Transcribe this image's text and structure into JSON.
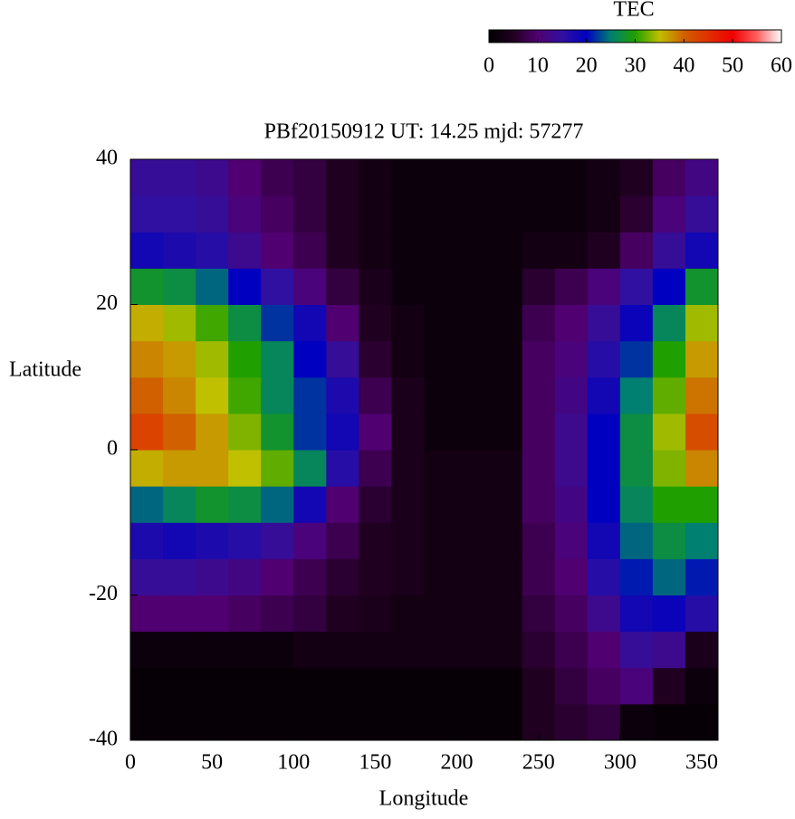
{
  "chart_data": {
    "type": "heatmap",
    "title": "PBf20150912  UT: 14.25  mjd: 57277",
    "xlabel": "Longitude",
    "ylabel": "Latitude",
    "colorbar_label": "TEC",
    "xbins": [
      0,
      20,
      40,
      60,
      80,
      100,
      120,
      140,
      160,
      180,
      200,
      220,
      240,
      260,
      280,
      300,
      320,
      340,
      360
    ],
    "ybins": [
      -40,
      -35,
      -30,
      -25,
      -20,
      -15,
      -10,
      -5,
      0,
      5,
      10,
      15,
      20,
      25,
      30,
      35,
      40
    ],
    "z": [
      [
        1,
        1,
        1,
        1,
        1,
        1,
        1,
        1,
        1,
        1,
        1,
        1,
        5,
        6,
        7,
        2,
        1,
        1
      ],
      [
        1,
        1,
        1,
        1,
        1,
        1,
        1,
        1,
        1,
        1,
        1,
        1,
        5,
        7,
        9,
        11,
        5,
        2
      ],
      [
        2,
        2,
        2,
        2,
        2,
        3,
        3,
        3,
        3,
        3,
        3,
        3,
        6,
        8,
        10,
        14,
        13,
        4
      ],
      [
        10,
        10,
        10,
        9,
        8,
        7,
        5,
        4,
        3,
        3,
        3,
        3,
        7,
        9,
        13,
        18,
        19,
        16
      ],
      [
        14,
        14,
        13,
        12,
        10,
        8,
        6,
        5,
        4,
        3,
        3,
        3,
        8,
        10,
        16,
        21,
        24,
        21
      ],
      [
        17,
        18,
        17,
        16,
        14,
        11,
        8,
        5,
        4,
        3,
        3,
        3,
        8,
        11,
        18,
        24,
        27,
        25
      ],
      [
        24,
        26,
        28,
        27,
        24,
        18,
        10,
        6,
        4,
        3,
        3,
        3,
        9,
        12,
        20,
        26,
        30,
        30
      ],
      [
        36,
        37,
        37,
        35,
        32,
        26,
        16,
        8,
        4,
        3,
        3,
        3,
        9,
        13,
        20,
        27,
        33,
        38
      ],
      [
        43,
        40,
        37,
        33,
        28,
        22,
        18,
        10,
        4,
        2,
        2,
        2,
        9,
        13,
        20,
        27,
        34,
        42
      ],
      [
        40,
        38,
        35,
        31,
        26,
        22,
        17,
        8,
        4,
        2,
        2,
        2,
        9,
        12,
        18,
        25,
        32,
        39
      ],
      [
        38,
        37,
        34,
        30,
        26,
        20,
        14,
        6,
        3,
        2,
        2,
        2,
        9,
        11,
        16,
        22,
        30,
        37
      ],
      [
        36,
        34,
        31,
        27,
        22,
        18,
        10,
        5,
        3,
        2,
        2,
        2,
        8,
        10,
        14,
        19,
        26,
        34
      ],
      [
        28,
        27,
        24,
        20,
        15,
        11,
        7,
        4,
        2,
        2,
        2,
        2,
        6,
        8,
        11,
        15,
        20,
        28
      ],
      [
        18,
        17,
        16,
        13,
        10,
        8,
        5,
        3,
        2,
        2,
        2,
        2,
        3,
        3,
        5,
        9,
        14,
        18
      ],
      [
        15,
        15,
        14,
        11,
        9,
        7,
        5,
        3,
        2,
        2,
        2,
        2,
        2,
        2,
        3,
        6,
        11,
        14
      ],
      [
        14,
        14,
        13,
        10,
        8,
        7,
        5,
        3,
        2,
        2,
        2,
        2,
        2,
        2,
        3,
        5,
        9,
        12
      ]
    ],
    "xlim": [
      0,
      360
    ],
    "xticks": [
      0,
      50,
      100,
      150,
      200,
      250,
      300,
      350
    ],
    "ylim": [
      -40,
      40
    ],
    "yticks": [
      -40,
      -20,
      0,
      20,
      40
    ],
    "zlim": [
      0,
      60
    ],
    "zticks": [
      0,
      10,
      20,
      30,
      40,
      50,
      60
    ],
    "colorscale": [
      [
        0,
        "#000000"
      ],
      [
        5,
        "#200020"
      ],
      [
        10,
        "#500070"
      ],
      [
        15,
        "#3010a0"
      ],
      [
        20,
        "#0000c0"
      ],
      [
        25,
        "#008070"
      ],
      [
        30,
        "#20a000"
      ],
      [
        35,
        "#c0c000"
      ],
      [
        40,
        "#d06000"
      ],
      [
        50,
        "#f00000"
      ],
      [
        55,
        "#ff6060"
      ],
      [
        60,
        "#ffffff"
      ]
    ]
  }
}
